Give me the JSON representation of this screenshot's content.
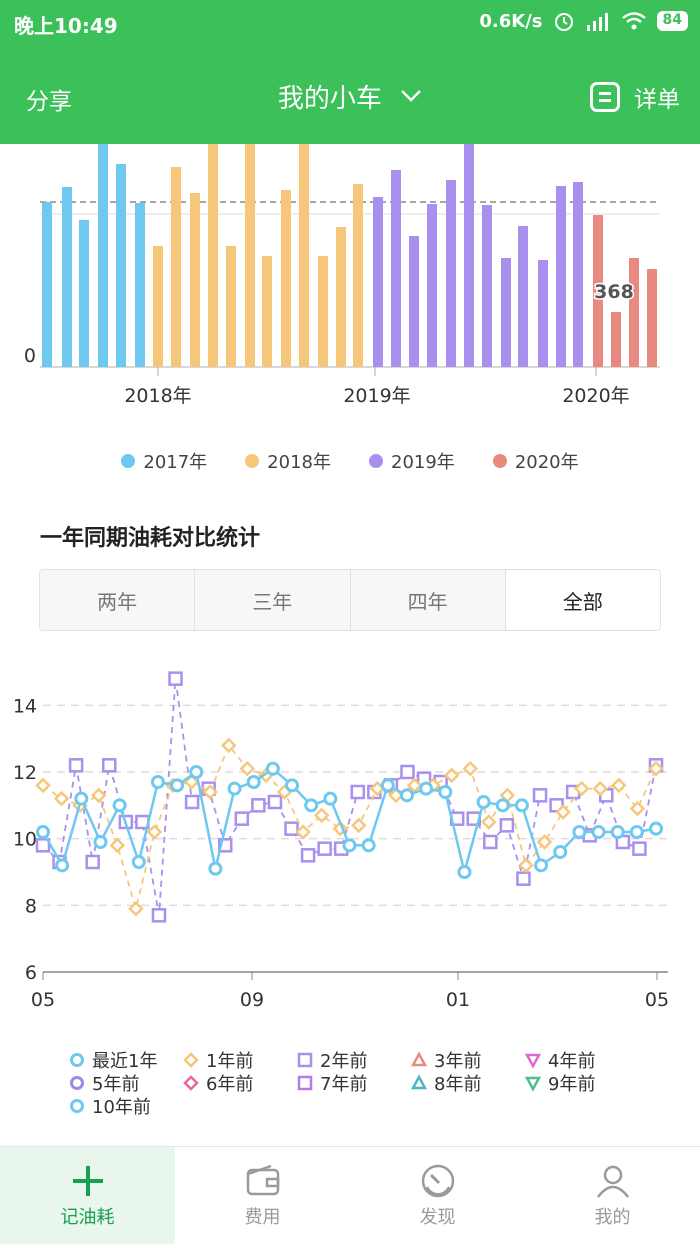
{
  "status": {
    "time": "晚上10:49",
    "speed": "0.6K/s",
    "battery": "84"
  },
  "appbar": {
    "share": "分享",
    "title": "我的小车",
    "detail": "详单"
  },
  "bar_chart": {
    "type": "bar",
    "y_label_zero": "0",
    "highlight_label": "368",
    "x_ticks": [
      "2018年",
      "2019年",
      "2020年"
    ],
    "legend": [
      {
        "label": "2017年",
        "color": "#6ec8ef"
      },
      {
        "label": "2018年",
        "color": "#f6c77b"
      },
      {
        "label": "2019年",
        "color": "#a990ef"
      },
      {
        "label": "2020年",
        "color": "#e98a80"
      }
    ]
  },
  "section": {
    "title": "一年同期油耗对比统计"
  },
  "segment": {
    "options": [
      "两年",
      "三年",
      "四年",
      "全部"
    ],
    "selected": "全部"
  },
  "chart_data": {
    "type": "line",
    "ylim": [
      6,
      15
    ],
    "yticks": [
      "6",
      "8",
      "10",
      "12",
      "14"
    ],
    "xticks": [
      "05",
      "09",
      "01",
      "05"
    ],
    "series": [
      {
        "name": "最近1年",
        "color": "#6ec8ef",
        "marker": "circle",
        "values": [
          10.2,
          9.2,
          11.2,
          9.9,
          11.0,
          9.3,
          11.7,
          11.6,
          12.0,
          9.1,
          11.5,
          11.7,
          12.1,
          11.6,
          11.0,
          11.2,
          9.8,
          9.8,
          11.6,
          11.3,
          11.5,
          11.4,
          9.0,
          11.1,
          11.0,
          11.0,
          9.2,
          9.6,
          10.2,
          10.2,
          10.2,
          10.2,
          10.3
        ]
      },
      {
        "name": "1年前",
        "color": "#f6c77b",
        "marker": "diamond",
        "values": [
          11.6,
          11.2,
          11.0,
          11.3,
          9.8,
          7.9,
          10.2,
          11.6,
          11.7,
          11.4,
          12.8,
          12.1,
          11.9,
          11.4,
          10.2,
          10.7,
          10.3,
          10.4,
          11.5,
          11.3,
          11.6,
          11.6,
          11.9,
          12.1,
          10.5,
          11.3,
          9.2,
          9.9,
          10.8,
          11.5,
          11.5,
          11.6,
          10.9,
          12.1
        ]
      },
      {
        "name": "2年前",
        "color": "#a990ef",
        "marker": "square",
        "values": [
          9.8,
          9.3,
          12.2,
          9.3,
          12.2,
          10.5,
          10.5,
          7.7,
          14.8,
          11.1,
          11.5,
          9.8,
          10.6,
          11.0,
          11.1,
          10.3,
          9.5,
          9.7,
          9.7,
          11.4,
          11.4,
          11.6,
          12.0,
          11.8,
          11.7,
          10.6,
          10.6,
          9.9,
          10.4,
          8.8,
          11.3,
          11.0,
          11.4,
          10.1,
          11.3,
          9.9,
          9.7,
          12.2
        ]
      },
      {
        "name": "3年前",
        "color": "#e98a80",
        "marker": "triangle",
        "values": []
      },
      {
        "name": "4年前",
        "color": "#d96ad6",
        "marker": "triangle-down",
        "values": []
      },
      {
        "name": "5年前",
        "color": "#9c89e6",
        "marker": "circle",
        "values": []
      },
      {
        "name": "6年前",
        "color": "#e6679f",
        "marker": "diamond",
        "values": []
      },
      {
        "name": "7年前",
        "color": "#b67be8",
        "marker": "square",
        "values": []
      },
      {
        "name": "8年前",
        "color": "#4fb7c4",
        "marker": "triangle",
        "values": []
      },
      {
        "name": "9年前",
        "color": "#4fbe8f",
        "marker": "triangle-down",
        "values": []
      },
      {
        "name": "10年前",
        "color": "#6ec8ef",
        "marker": "circle",
        "values": []
      }
    ]
  },
  "tabs": [
    {
      "label": "记油耗",
      "icon": "plus-icon",
      "active": true
    },
    {
      "label": "费用",
      "icon": "wallet-icon",
      "active": false
    },
    {
      "label": "发现",
      "icon": "gauge-icon",
      "active": false
    },
    {
      "label": "我的",
      "icon": "user-icon",
      "active": false
    }
  ]
}
